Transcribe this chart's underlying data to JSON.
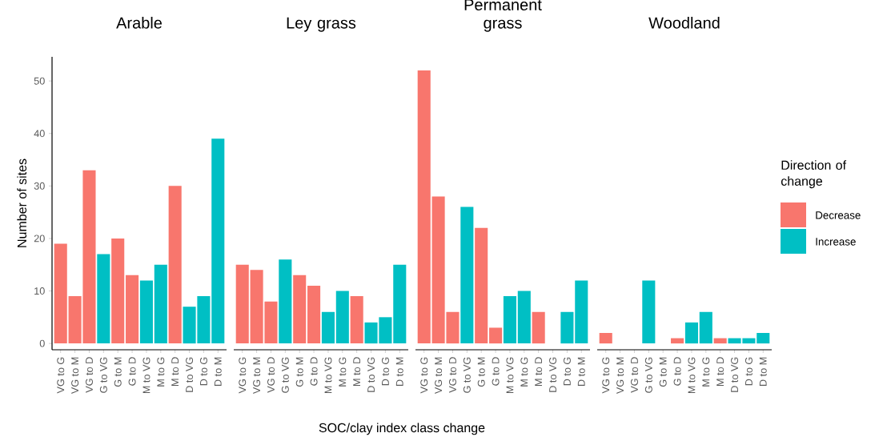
{
  "chart_data": [
    {
      "type": "bar",
      "title": "Arable",
      "ylabel": "Number of sites",
      "categories": [
        "VG to G",
        "VG to M",
        "VG to D",
        "G to VG",
        "G to M",
        "G to D",
        "M to VG",
        "M to G",
        "M to D",
        "D to VG",
        "D to G",
        "D to M"
      ],
      "series": [
        {
          "color": "#f8766d",
          "values": [
            19,
            9,
            33,
            null,
            20,
            13,
            null,
            null,
            30,
            null,
            null,
            null
          ]
        },
        {
          "color": "#00bfc4",
          "values": [
            null,
            null,
            null,
            17,
            null,
            null,
            12,
            15,
            null,
            7,
            9,
            39
          ]
        }
      ],
      "ylim": [
        -1.2,
        54.6
      ],
      "yticks": [
        0,
        10,
        20,
        30,
        40,
        50
      ],
      "grid": false
    },
    {
      "type": "bar",
      "title": "Ley grass",
      "xlabel": "SOC/clay index class change",
      "categories": [
        "VG to G",
        "VG to M",
        "VG to D",
        "G to VG",
        "G to M",
        "G to D",
        "M to VG",
        "M to G",
        "M to D",
        "D to VG",
        "D to G",
        "D to M"
      ],
      "series": [
        {
          "color": "#f8766d",
          "values": [
            15,
            14,
            8,
            null,
            13,
            11,
            null,
            null,
            9,
            null,
            null,
            null
          ]
        },
        {
          "color": "#00bfc4",
          "values": [
            null,
            null,
            null,
            16,
            null,
            null,
            6,
            10,
            null,
            4,
            5,
            15
          ]
        }
      ],
      "yticks": [
        0,
        10,
        20,
        30,
        40,
        50
      ],
      "tick_labels": "x",
      "grid": false
    },
    {
      "type": "bar",
      "title": "Permanent grass",
      "categories": [
        "VG to G",
        "VG to M",
        "VG to D",
        "G to VG",
        "G to M",
        "G to D",
        "M to VG",
        "M to G",
        "M to D",
        "D to VG",
        "D to G",
        "D to M"
      ],
      "series": [
        {
          "color": "#f8766d",
          "values": [
            52,
            28,
            6,
            null,
            22,
            3,
            null,
            null,
            6,
            null,
            null,
            null
          ]
        },
        {
          "color": "#00bfc4",
          "values": [
            null,
            null,
            null,
            26,
            null,
            null,
            9,
            10,
            null,
            null,
            6,
            12
          ]
        }
      ],
      "yticks": [
        0,
        10,
        20,
        30,
        40,
        50
      ],
      "tick_labels": "x",
      "grid": false
    },
    {
      "type": "bar",
      "title": "Woodland",
      "legend": "right",
      "legend_title": "Direction of change",
      "categories": [
        "VG to G",
        "VG to M",
        "VG to D",
        "G to VG",
        "G to M",
        "G to D",
        "M to VG",
        "M to G",
        "M to D",
        "D to VG",
        "D to G",
        "D to M"
      ],
      "series": [
        {
          "name": "Decrease",
          "color": "#f8766d",
          "values": [
            2,
            null,
            null,
            null,
            null,
            1,
            null,
            null,
            1,
            null,
            null,
            null
          ]
        },
        {
          "name": "Increase",
          "color": "#00bfc4",
          "values": [
            null,
            null,
            null,
            12,
            null,
            null,
            4,
            6,
            null,
            1,
            1,
            2
          ]
        }
      ],
      "yticks": [
        0,
        10,
        20,
        30,
        40,
        50
      ],
      "tick_labels": "x",
      "grid": false
    }
  ]
}
